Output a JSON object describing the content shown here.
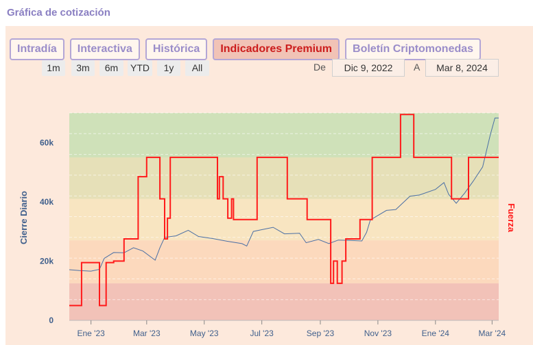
{
  "title": "Gráfica de cotización",
  "tabs": [
    {
      "label": "Intradía",
      "active": false
    },
    {
      "label": "Interactiva",
      "active": false
    },
    {
      "label": "Histórica",
      "active": false
    },
    {
      "label": "Indicadores Premium",
      "active": true
    },
    {
      "label": "Boletín Criptomonedas",
      "active": false
    }
  ],
  "range_buttons": [
    "1m",
    "3m",
    "6m",
    "YTD",
    "1y",
    "All"
  ],
  "date_range": {
    "from_label": "De",
    "from": "Dic 9, 2022",
    "to_label": "A",
    "to": "Mar 8, 2024"
  },
  "colors": {
    "price_line": "#4a6fa5",
    "strength_line": "#ff1a1a",
    "zone_red": "#f2c2b8",
    "zone_orange": "#fcd9bd",
    "zone_yellow": "#f8e5c1",
    "zone_olive": "#e6e0b8",
    "zone_green": "#cfe1b9"
  },
  "chart_data": {
    "type": "line",
    "ylabel": "Cierre Diario",
    "y2label": "Fuerza",
    "ylim": [
      0,
      70000
    ],
    "y_ticks": [
      0,
      20000,
      40000,
      60000
    ],
    "y_tick_labels": [
      "0",
      "20k",
      "40k",
      "60k"
    ],
    "x_ticks": [
      "2023-01-01",
      "2023-03-01",
      "2023-05-01",
      "2023-07-01",
      "2023-09-01",
      "2023-11-01",
      "2024-01-01",
      "2024-03-01"
    ],
    "x_tick_labels": [
      "Ene '23",
      "Mar '23",
      "May '23",
      "Jul '23",
      "Sep '23",
      "Nov '23",
      "Ene '24",
      "Mar '24"
    ],
    "xlim": [
      "2022-12-09",
      "2024-03-08"
    ],
    "zones": [
      {
        "from": 0,
        "to": 12500,
        "color": "#f2c2b8"
      },
      {
        "from": 12500,
        "to": 27000,
        "color": "#fcd9bd"
      },
      {
        "from": 27000,
        "to": 41000,
        "color": "#f8e5c1"
      },
      {
        "from": 41000,
        "to": 55000,
        "color": "#e6e0b8"
      },
      {
        "from": 55000,
        "to": 70000,
        "color": "#cfe1b9"
      }
    ],
    "series": [
      {
        "name": "Cierre Diario",
        "points": [
          [
            "2022-12-09",
            17100
          ],
          [
            "2022-12-20",
            16800
          ],
          [
            "2023-01-01",
            16600
          ],
          [
            "2023-01-10",
            17200
          ],
          [
            "2023-01-15",
            20900
          ],
          [
            "2023-01-25",
            22900
          ],
          [
            "2023-02-05",
            22800
          ],
          [
            "2023-02-15",
            24500
          ],
          [
            "2023-02-25",
            23400
          ],
          [
            "2023-03-10",
            20300
          ],
          [
            "2023-03-15",
            24500
          ],
          [
            "2023-03-20",
            28000
          ],
          [
            "2023-04-01",
            28500
          ],
          [
            "2023-04-14",
            30400
          ],
          [
            "2023-04-25",
            28300
          ],
          [
            "2023-05-10",
            27600
          ],
          [
            "2023-05-25",
            26700
          ],
          [
            "2023-06-10",
            25900
          ],
          [
            "2023-06-15",
            25100
          ],
          [
            "2023-06-22",
            30000
          ],
          [
            "2023-07-01",
            30600
          ],
          [
            "2023-07-13",
            31400
          ],
          [
            "2023-07-25",
            29200
          ],
          [
            "2023-08-10",
            29400
          ],
          [
            "2023-08-17",
            26200
          ],
          [
            "2023-08-30",
            27300
          ],
          [
            "2023-09-10",
            25900
          ],
          [
            "2023-09-20",
            27100
          ],
          [
            "2023-10-01",
            27000
          ],
          [
            "2023-10-15",
            26800
          ],
          [
            "2023-10-20",
            29700
          ],
          [
            "2023-10-24",
            33900
          ],
          [
            "2023-11-10",
            37100
          ],
          [
            "2023-11-20",
            37400
          ],
          [
            "2023-12-05",
            41900
          ],
          [
            "2023-12-15",
            42300
          ],
          [
            "2024-01-01",
            44200
          ],
          [
            "2024-01-10",
            46500
          ],
          [
            "2024-01-15",
            42500
          ],
          [
            "2024-01-23",
            39500
          ],
          [
            "2024-02-01",
            43000
          ],
          [
            "2024-02-10",
            47000
          ],
          [
            "2024-02-20",
            51800
          ],
          [
            "2024-02-28",
            62500
          ],
          [
            "2024-03-04",
            68300
          ],
          [
            "2024-03-08",
            68300
          ]
        ]
      },
      {
        "name": "Fuerza",
        "points": [
          [
            "2022-12-09",
            5000
          ],
          [
            "2022-12-22",
            5000
          ],
          [
            "2022-12-22",
            19500
          ],
          [
            "2023-01-10",
            19500
          ],
          [
            "2023-01-10",
            5000
          ],
          [
            "2023-01-17",
            5000
          ],
          [
            "2023-01-17",
            19500
          ],
          [
            "2023-01-25",
            19500
          ],
          [
            "2023-01-25",
            20000
          ],
          [
            "2023-02-05",
            20000
          ],
          [
            "2023-02-05",
            27500
          ],
          [
            "2023-02-20",
            27500
          ],
          [
            "2023-02-20",
            48500
          ],
          [
            "2023-03-01",
            48500
          ],
          [
            "2023-03-01",
            55000
          ],
          [
            "2023-03-15",
            55000
          ],
          [
            "2023-03-15",
            41000
          ],
          [
            "2023-03-20",
            41000
          ],
          [
            "2023-03-20",
            27500
          ],
          [
            "2023-03-23",
            27500
          ],
          [
            "2023-03-23",
            34500
          ],
          [
            "2023-03-26",
            34500
          ],
          [
            "2023-03-26",
            55000
          ],
          [
            "2023-05-15",
            55000
          ],
          [
            "2023-05-15",
            41000
          ],
          [
            "2023-05-17",
            41000
          ],
          [
            "2023-05-17",
            48500
          ],
          [
            "2023-05-21",
            48500
          ],
          [
            "2023-05-21",
            41000
          ],
          [
            "2023-05-26",
            41000
          ],
          [
            "2023-05-26",
            34500
          ],
          [
            "2023-05-30",
            34500
          ],
          [
            "2023-05-30",
            41000
          ],
          [
            "2023-06-01",
            41000
          ],
          [
            "2023-06-01",
            34000
          ],
          [
            "2023-06-26",
            34000
          ],
          [
            "2023-06-26",
            55000
          ],
          [
            "2023-07-28",
            55000
          ],
          [
            "2023-07-28",
            41000
          ],
          [
            "2023-08-18",
            41000
          ],
          [
            "2023-08-18",
            34000
          ],
          [
            "2023-09-12",
            34000
          ],
          [
            "2023-09-12",
            12500
          ],
          [
            "2023-09-15",
            12500
          ],
          [
            "2023-09-15",
            20000
          ],
          [
            "2023-09-19",
            20000
          ],
          [
            "2023-09-19",
            12500
          ],
          [
            "2023-09-24",
            12500
          ],
          [
            "2023-09-24",
            20000
          ],
          [
            "2023-09-28",
            20000
          ],
          [
            "2023-09-28",
            27500
          ],
          [
            "2023-10-13",
            27500
          ],
          [
            "2023-10-13",
            34000
          ],
          [
            "2023-10-26",
            34000
          ],
          [
            "2023-10-26",
            55000
          ],
          [
            "2023-11-25",
            55000
          ],
          [
            "2023-11-25",
            69500
          ],
          [
            "2023-12-09",
            69500
          ],
          [
            "2023-12-09",
            55000
          ],
          [
            "2024-01-18",
            55000
          ],
          [
            "2024-01-18",
            41000
          ],
          [
            "2024-02-05",
            41000
          ],
          [
            "2024-02-05",
            55000
          ],
          [
            "2024-03-08",
            55000
          ]
        ]
      }
    ]
  }
}
